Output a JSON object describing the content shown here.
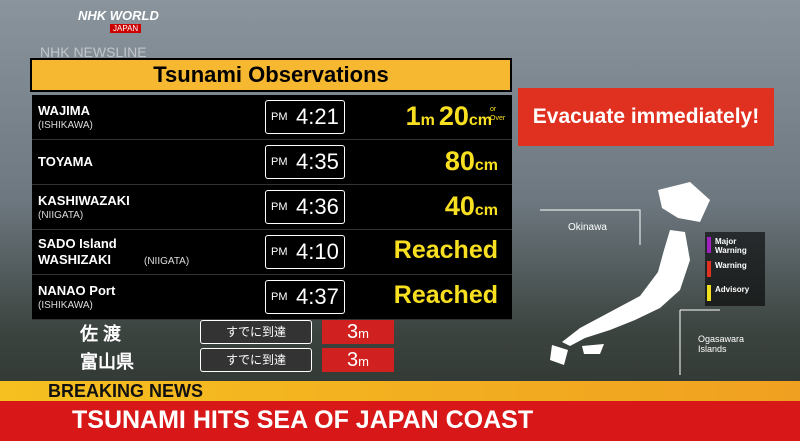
{
  "logo": {
    "brand": "NHK WORLD",
    "region": "JAPAN",
    "program": "NHK NEWSLINE"
  },
  "panel": {
    "title": "Tsunami Observations",
    "rows": [
      {
        "location": "WAJIMA",
        "prefecture": "(ISHIKAWA)",
        "period": "PM",
        "time": "4:21",
        "height": [
          {
            "number": "1",
            "unit": "m"
          },
          {
            "number": "20",
            "unit": "cm"
          }
        ],
        "note": "or Over"
      },
      {
        "location": "TOYAMA",
        "period": "PM",
        "time": "4:35",
        "height": [
          {
            "number": "80",
            "unit": "cm"
          }
        ]
      },
      {
        "location": "KASHIWAZAKI",
        "prefecture": "(NIIGATA)",
        "period": "PM",
        "time": "4:36",
        "height": [
          {
            "number": "40",
            "unit": "cm"
          }
        ]
      },
      {
        "location": "SADO Island",
        "location2": "WASHIZAKI",
        "prefecture": "(NIIGATA)",
        "period": "PM",
        "time": "4:10",
        "status": "Reached"
      },
      {
        "location": "NANAO Port",
        "prefecture": "(ISHIKAWA)",
        "period": "PM",
        "time": "4:37",
        "status": "Reached"
      }
    ]
  },
  "background_rows": [
    {
      "area": "佐 渡",
      "status": "すでに到達",
      "number": "3",
      "unit": "m"
    },
    {
      "area": "富山県",
      "status": "すでに到達",
      "number": "3",
      "unit": "m"
    }
  ],
  "alert": "Evacuate immediately!",
  "map": {
    "labels": [
      "Okinawa",
      "Ogasawara Islands"
    ],
    "legend": [
      {
        "label": "Major Warning",
        "color": "#a020c0"
      },
      {
        "label": "Warning",
        "color": "#e03020"
      },
      {
        "label": "Advisory",
        "color": "#f0e020"
      }
    ]
  },
  "ticker": {
    "tag": "BREAKING NEWS",
    "headline": "TSUNAMI HITS SEA OF JAPAN COAST"
  }
}
